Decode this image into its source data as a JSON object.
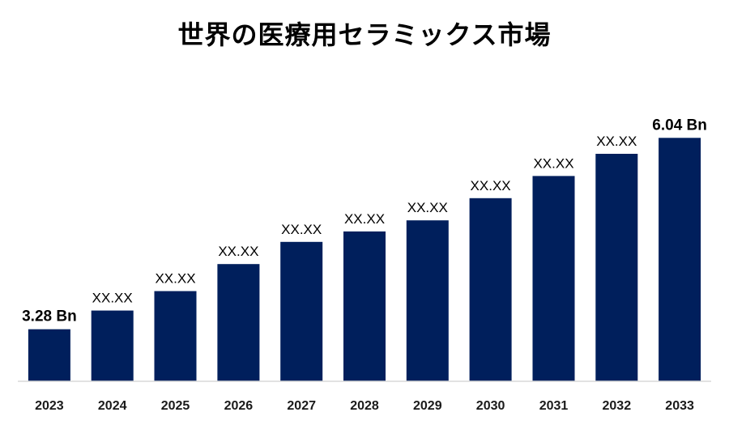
{
  "chart_data": {
    "type": "bar",
    "title": "世界の医療用セラミックス市場",
    "xlabel": "",
    "ylabel": "",
    "categories": [
      "2023",
      "2024",
      "2025",
      "2026",
      "2027",
      "2028",
      "2029",
      "2030",
      "2031",
      "2032",
      "2033"
    ],
    "values": [
      3.28,
      3.55,
      3.83,
      4.22,
      4.54,
      4.69,
      4.85,
      5.17,
      5.49,
      5.81,
      6.04
    ],
    "data_labels": [
      "3.28 Bn",
      "XX.XX",
      "XX.XX",
      "XX.XX",
      "XX.XX",
      "XX.XX",
      "XX.XX",
      "XX.XX",
      "XX.XX",
      "XX.XX",
      "6.04 Bn"
    ],
    "ylim": [
      2.53,
      6.23
    ],
    "grid": false,
    "bar_color": "#001f5c",
    "baseline_color": "#d9d9d9"
  }
}
